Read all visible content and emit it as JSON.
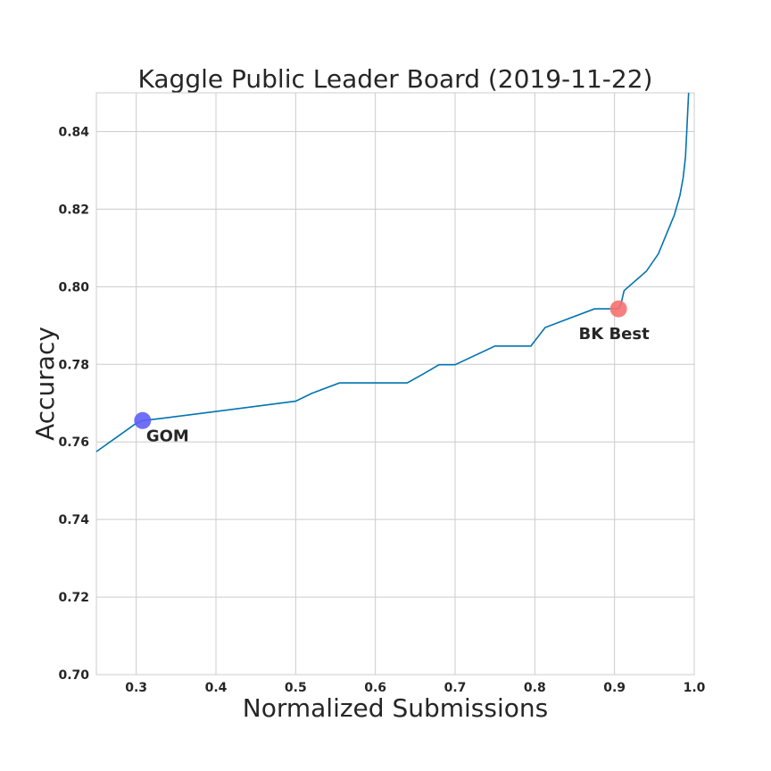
{
  "chart_data": {
    "type": "line",
    "title": "Kaggle Public Leader Board (2019-11-22)",
    "xlabel": "Normalized Submissions",
    "ylabel": "Accuracy",
    "xlim": [
      0.25,
      1.0
    ],
    "ylim": [
      0.7,
      0.85
    ],
    "x_ticks": [
      0.3,
      0.4,
      0.5,
      0.6,
      0.7,
      0.8,
      0.9,
      1.0
    ],
    "x_tick_labels": [
      "0.3",
      "0.4",
      "0.5",
      "0.6",
      "0.7",
      "0.8",
      "0.9",
      "1.0"
    ],
    "y_ticks": [
      0.7,
      0.72,
      0.74,
      0.76,
      0.78,
      0.8,
      0.82,
      0.84
    ],
    "y_tick_labels": [
      "0.70",
      "0.72",
      "0.74",
      "0.76",
      "0.78",
      "0.80",
      "0.82",
      "0.84"
    ],
    "grid": true,
    "series": [
      {
        "color": "#0173b2",
        "x": [
          0.25,
          0.298,
          0.308,
          0.33,
          0.5,
          0.52,
          0.555,
          0.6,
          0.64,
          0.66,
          0.68,
          0.7,
          0.75,
          0.795,
          0.813,
          0.875,
          0.905,
          0.908,
          0.912,
          0.94,
          0.955,
          0.965,
          0.975,
          0.982,
          0.986,
          0.989,
          0.991,
          0.993
        ],
        "y": [
          0.7575,
          0.7645,
          0.7655,
          0.766,
          0.7705,
          0.7725,
          0.7752,
          0.7752,
          0.7752,
          0.7775,
          0.7799,
          0.7799,
          0.7847,
          0.7847,
          0.7895,
          0.7943,
          0.7943,
          0.7955,
          0.799,
          0.804,
          0.8085,
          0.8135,
          0.8185,
          0.8235,
          0.828,
          0.8335,
          0.842,
          0.85
        ]
      }
    ],
    "points": [
      {
        "x": 0.308,
        "y": 0.7655,
        "color": "#5f5ff5",
        "label": "GOM"
      },
      {
        "x": 0.905,
        "y": 0.7943,
        "color": "#f77171",
        "label": "BK Best"
      }
    ]
  }
}
